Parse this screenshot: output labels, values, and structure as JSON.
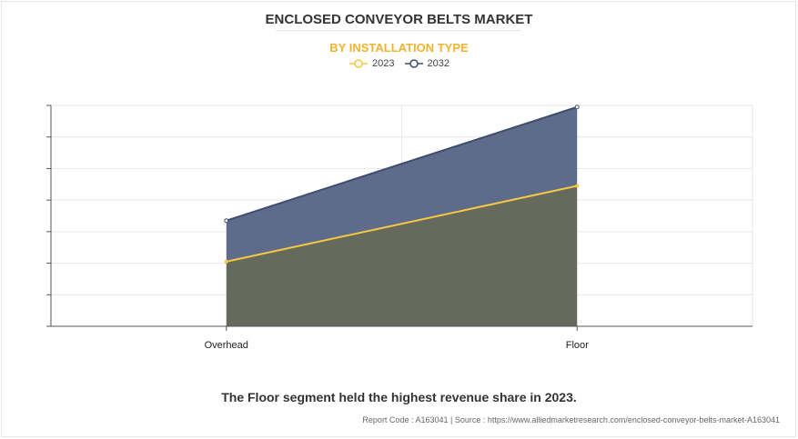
{
  "header": {
    "title": "ENCLOSED CONVEYOR BELTS MARKET",
    "subtitle": "BY  INSTALLATION TYPE"
  },
  "footer": {
    "summary": "The Floor segment held the highest revenue share in 2023.",
    "source": "Report Code : A163041  |  Source : https://www.alliedmarketresearch.com/enclosed-conveyor-belts-market-A163041"
  },
  "colors": {
    "series_2023": "#f5c842",
    "series_2032": "#3e4c6e",
    "area_2023": "#666a5c",
    "area_2032": "#5f6b8a",
    "subtitle": "#f0b330"
  },
  "chart_data": {
    "type": "area",
    "categories": [
      "Overhead",
      "Floor"
    ],
    "series": [
      {
        "name": "2023",
        "values": [
          2.05,
          4.45
        ]
      },
      {
        "name": "2032",
        "values": [
          3.35,
          6.95
        ]
      }
    ],
    "ylim": [
      0,
      7
    ],
    "ytick_count": 7,
    "grid": true,
    "legend": "top-center",
    "xlabel": "",
    "ylabel": ""
  }
}
